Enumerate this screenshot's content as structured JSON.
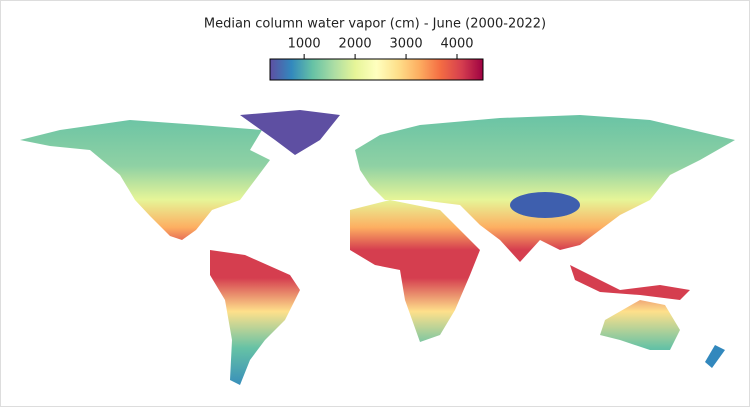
{
  "title": "Median column water vapor (cm) - June (2000-2022)",
  "colorbar": {
    "lim": [
      330,
      4510
    ],
    "ticks": [
      1000,
      2000,
      3000,
      4000
    ],
    "colors": [
      "#5e4fa2",
      "#3288bd",
      "#66c2a5",
      "#abdda4",
      "#e6f598",
      "#ffffbf",
      "#fee08b",
      "#fdae61",
      "#f46d43",
      "#d53e4f",
      "#9e0142"
    ]
  }
}
